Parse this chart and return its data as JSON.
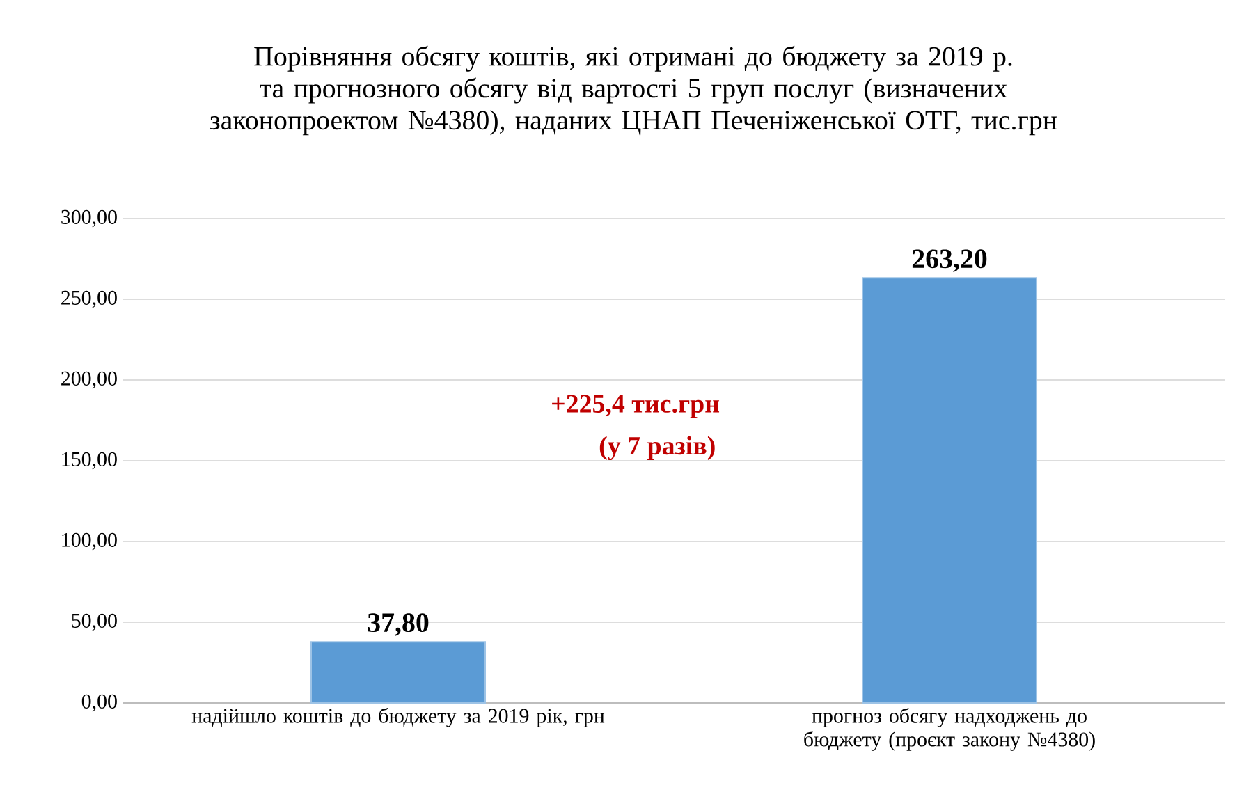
{
  "chart_data": {
    "type": "bar",
    "title": "Порівняння обсягу коштів, які отримані до бюджету за 2019 р. та прогнозного обсягу від вартості 5 груп послуг (визначених законопроектом №4380), наданих ЦНАП Печеніженської ОТГ, тис.грн",
    "categories": [
      "надійшло коштів до бюджету за 2019 рік, грн",
      "прогноз обсягу надходжень до бюджету (проєкт закону №4380)"
    ],
    "values": [
      37.8,
      263.2
    ],
    "color": "#5b9bd5",
    "value_labels": [
      "37,80",
      "263,20"
    ],
    "ylim": [
      0,
      300
    ],
    "yticks": [
      {
        "value": 0,
        "label": "0,00"
      },
      {
        "value": 50,
        "label": "50,00"
      },
      {
        "value": 100,
        "label": "100,00"
      },
      {
        "value": 150,
        "label": "150,00"
      },
      {
        "value": 200,
        "label": "200,00"
      },
      {
        "value": 250,
        "label": "250,00"
      },
      {
        "value": 300,
        "label": "300,00"
      }
    ],
    "grid": "y",
    "annotations": [
      "+225,4 тис.грн",
      "(у 7 разів)"
    ]
  }
}
